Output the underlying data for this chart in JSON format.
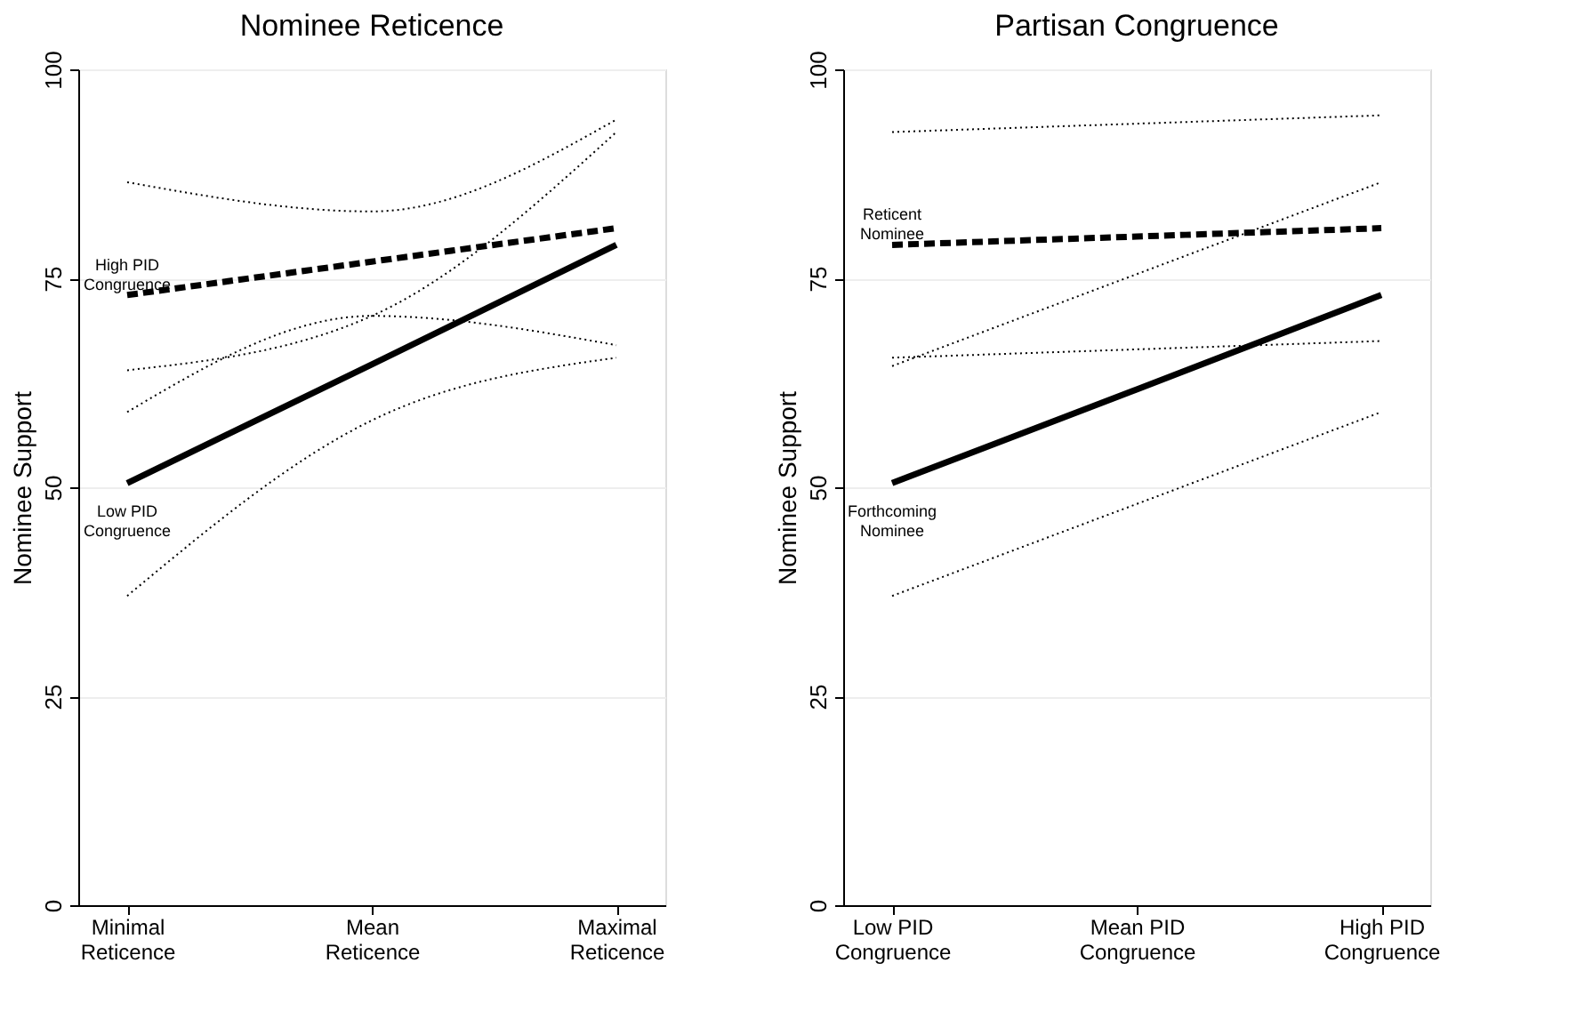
{
  "chart_data": [
    {
      "type": "line",
      "title": "Nominee Reticence",
      "ylabel": "Nominee Support",
      "categories": [
        "Minimal\nReticence",
        "Mean\nReticence",
        "Maximal\nReticence"
      ],
      "series": [
        {
          "name": "High PID\nCongruence",
          "color": "#000000",
          "line_style": "dashed",
          "values": [
            73,
            77,
            81
          ]
        },
        {
          "name": "Low PID\nCongruence",
          "color": "#000000",
          "line_style": "solid",
          "values": [
            50.5,
            64.7,
            79
          ]
        },
        {
          "color": "#000000",
          "line_style": "dotted",
          "values": [
            59,
            70.5,
            67
          ]
        },
        {
          "color": "#000000",
          "line_style": "dotted",
          "values": [
            86.5,
            83,
            94
          ]
        },
        {
          "color": "#000000",
          "line_style": "dotted",
          "values": [
            37,
            58,
            65.5
          ]
        },
        {
          "color": "#000000",
          "line_style": "dotted",
          "values": [
            64,
            70.5,
            92.5
          ]
        }
      ],
      "ylim": [
        0,
        100
      ],
      "yticks": [
        0,
        25,
        50,
        75,
        100
      ],
      "grid": "y"
    },
    {
      "type": "line",
      "title": "Partisan Congruence",
      "ylabel": "Nominee Support",
      "categories": [
        "Low PID\nCongruence",
        "Mean PID\nCongruence",
        "High PID\nCongruence"
      ],
      "series": [
        {
          "name": "Reticent\nNominee",
          "color": "#000000",
          "line_style": "dashed",
          "values": [
            79,
            80,
            81
          ]
        },
        {
          "name": "Forthcoming\nNominee",
          "color": "#000000",
          "line_style": "solid",
          "values": [
            50.5,
            61.7,
            73
          ]
        },
        {
          "color": "#000000",
          "line_style": "dotted",
          "values": [
            65.5,
            66.5,
            67.5
          ]
        },
        {
          "color": "#000000",
          "line_style": "dotted",
          "values": [
            92.5,
            93.5,
            94.5
          ]
        },
        {
          "color": "#000000",
          "line_style": "dotted",
          "values": [
            37,
            48,
            59
          ]
        },
        {
          "color": "#000000",
          "line_style": "dotted",
          "values": [
            64.5,
            75.5,
            86.5
          ]
        }
      ],
      "ylim": [
        0,
        100
      ],
      "yticks": [
        0,
        25,
        50,
        75,
        100
      ],
      "grid": "y"
    }
  ]
}
